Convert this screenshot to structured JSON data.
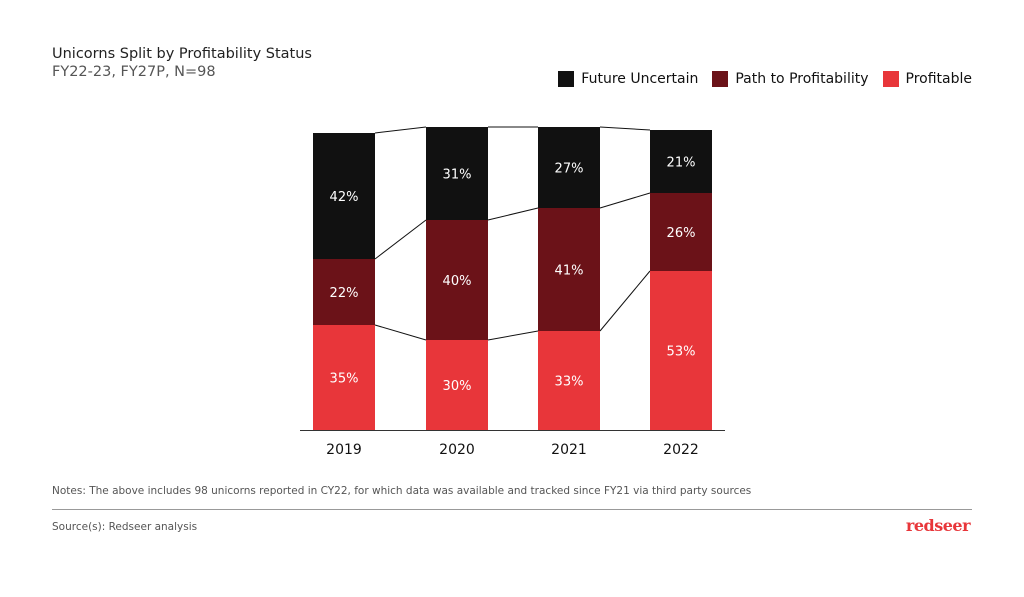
{
  "chart_data": {
    "type": "bar",
    "stacked": true,
    "title": "Unicorns Split by Profitability Status",
    "subtitle": "FY22-23, FY27P, N=98",
    "categories": [
      "2019",
      "2020",
      "2021",
      "2022"
    ],
    "series": [
      {
        "name": "Profitable",
        "color": "#e8363a",
        "values": [
          35,
          30,
          33,
          53
        ]
      },
      {
        "name": "Path to Profitability",
        "color": "#6b1218",
        "values": [
          22,
          40,
          41,
          26
        ]
      },
      {
        "name": "Future Uncertain",
        "color": "#111111",
        "values": [
          42,
          31,
          27,
          21
        ]
      }
    ],
    "legend_order": [
      2,
      1,
      0
    ],
    "legend_position": "top-right",
    "value_suffix": "%",
    "grid": false,
    "connector_lines": true
  },
  "footer": {
    "notes": "Notes: The above includes 98 unicorns reported in CY22,  for which data was available and tracked since FY21 via third party sources",
    "source": "Source(s): Redseer analysis",
    "logo": "redseer"
  }
}
